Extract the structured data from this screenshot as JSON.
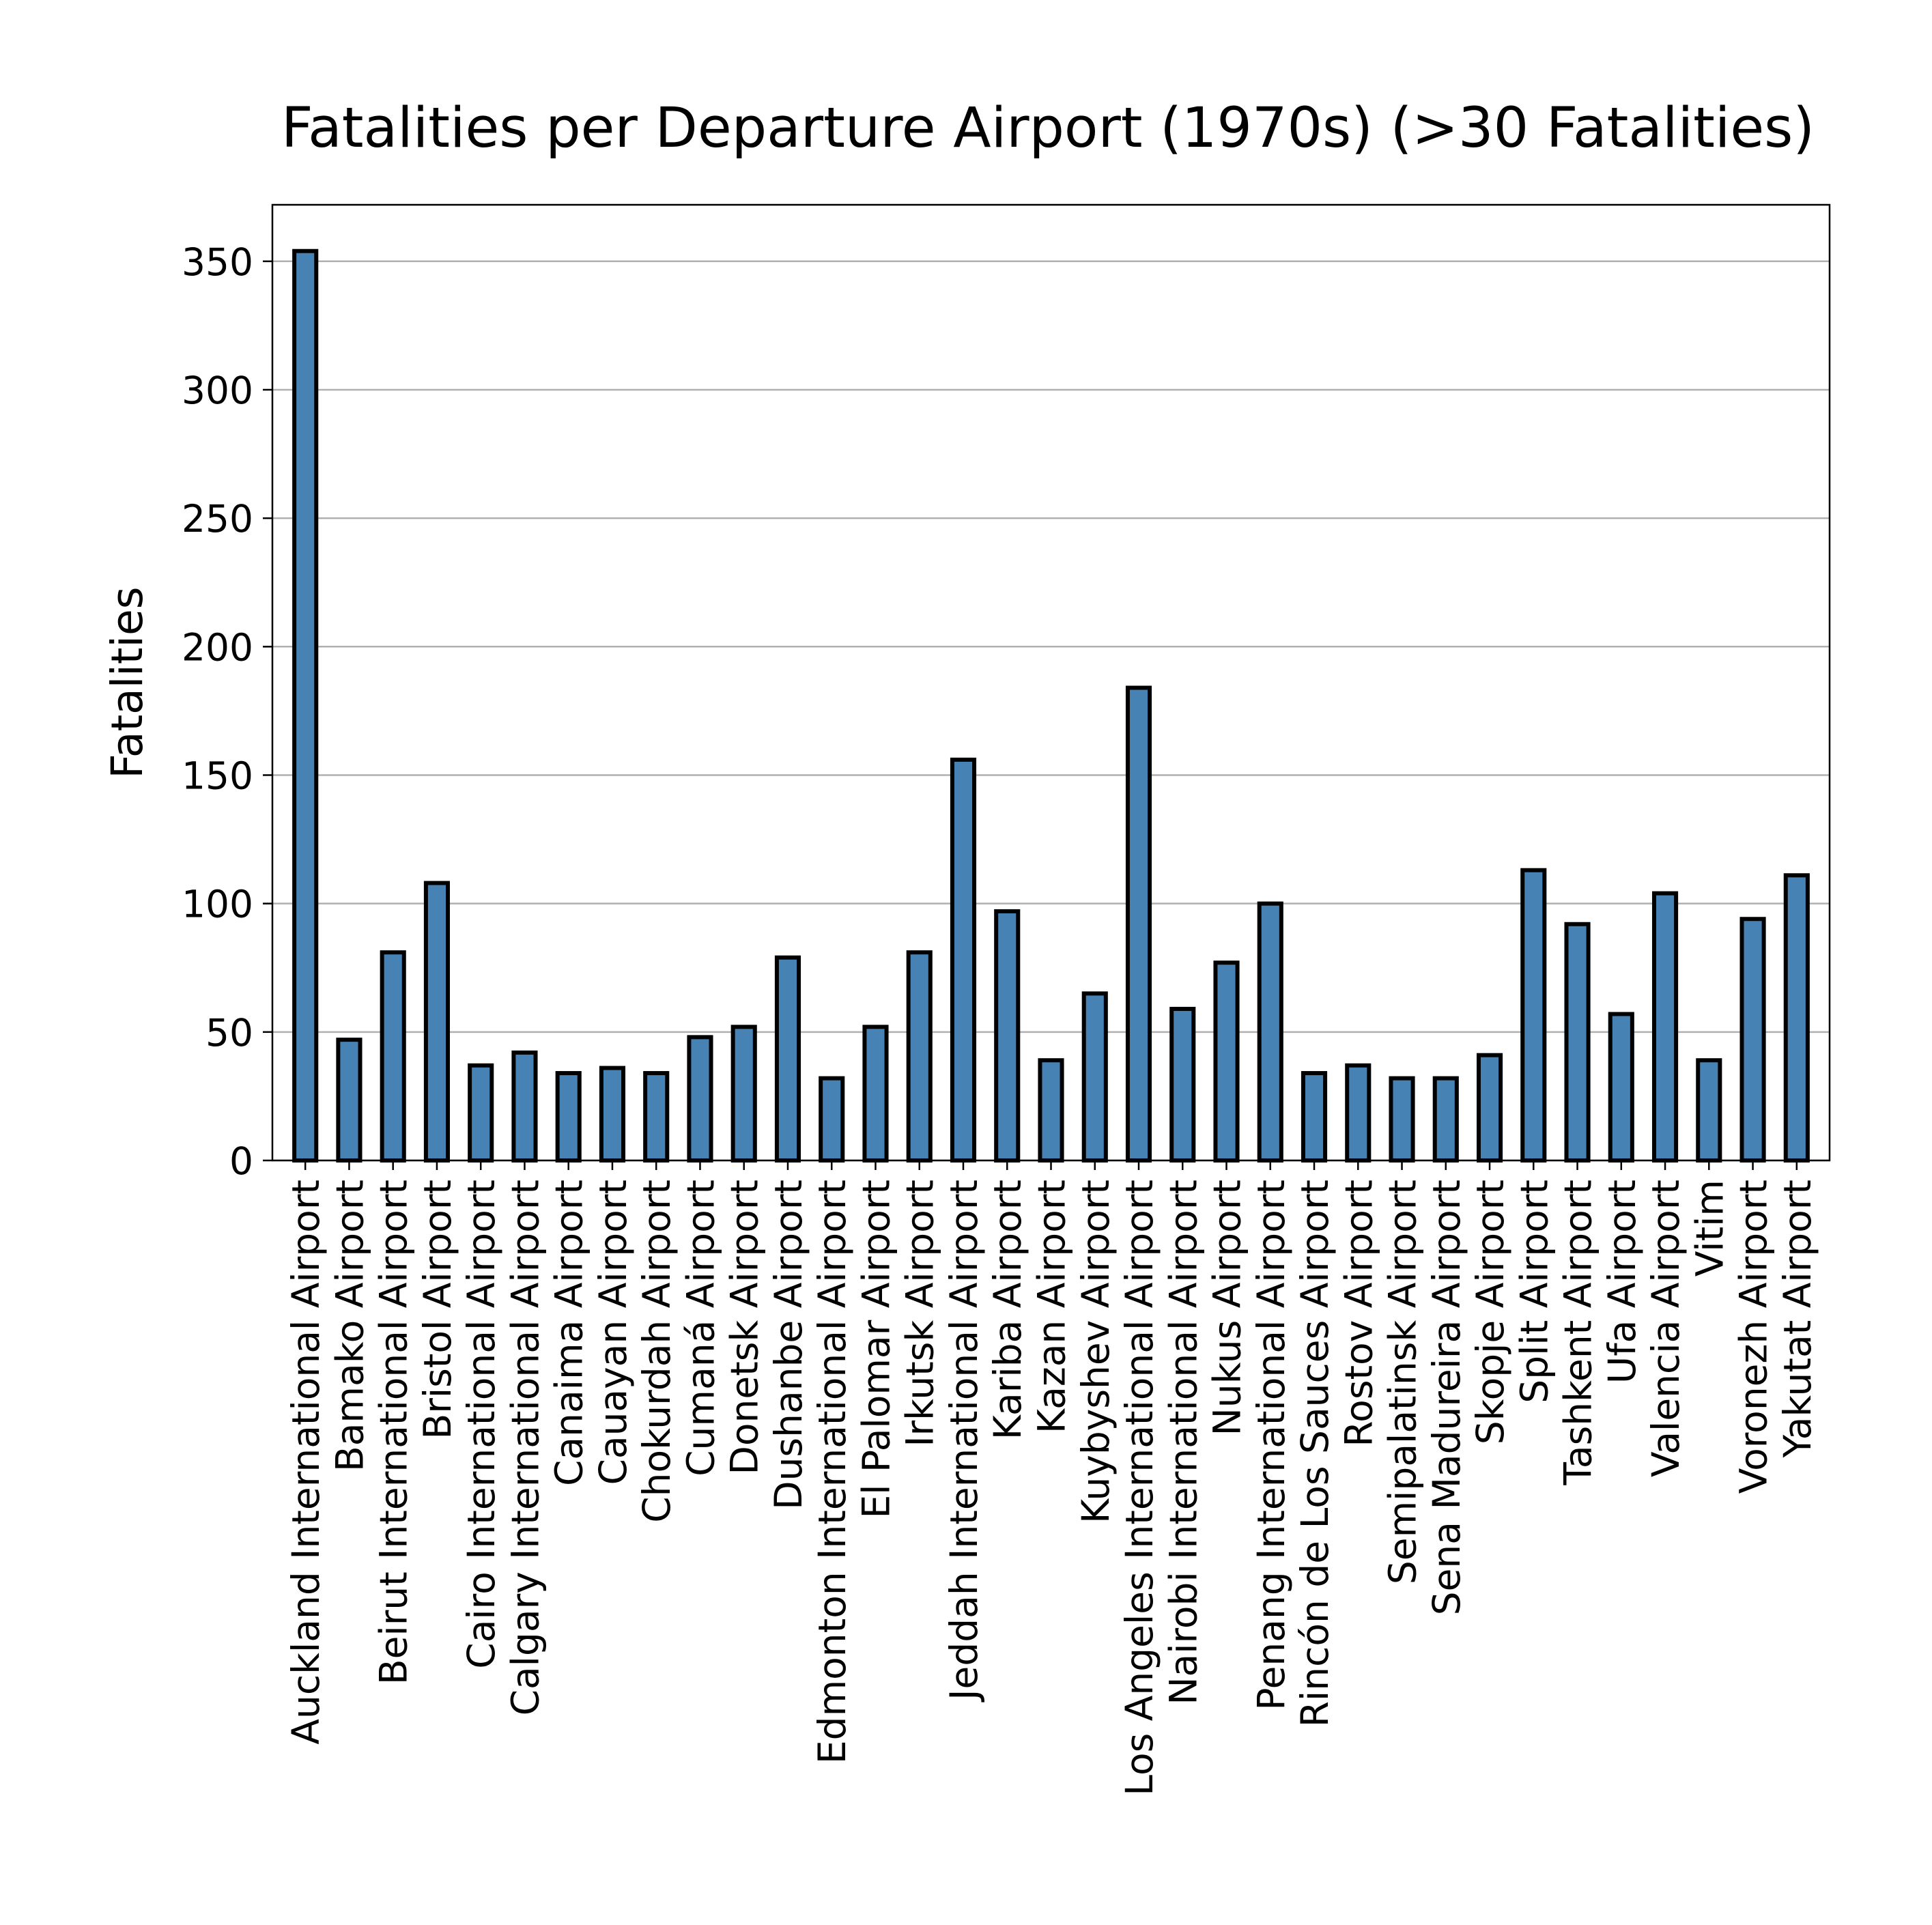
{
  "chart_data": {
    "type": "bar",
    "title": "Fatalities per Departure Airport (1970s) (>30 Fatalities)",
    "xlabel": "",
    "ylabel": "Fatalities",
    "ylim": [
      0,
      372
    ],
    "yticks": [
      0,
      50,
      100,
      150,
      200,
      250,
      300,
      350
    ],
    "grid": "y",
    "bar_color": "#4682b4",
    "edge_color": "#000000",
    "categories": [
      "Auckland International Airport",
      "Bamako Airport",
      "Beirut International Airport",
      "Bristol Airport",
      "Cairo International Airport",
      "Calgary International Airport",
      "Canaima Airport",
      "Cauayan Airport",
      "Chokurdah Airport",
      "Cumaná Airport",
      "Donetsk Airport",
      "Dushanbe Airport",
      "Edmonton International Airport",
      "El Palomar Airport",
      "Irkutsk Airport",
      "Jeddah International Airport",
      "Kariba Airport",
      "Kazan Airport",
      "Kuybyshev Airport",
      "Los Angeles International Airport",
      "Nairobi International Airport",
      "Nukus Airport",
      "Penang International Airport",
      "Rincón de Los Sauces Airport",
      "Rostov Airport",
      "Semipalatinsk Airport",
      "Sena Madureira Airport",
      "Skopje Airport",
      "Split Airport",
      "Tashkent Airport",
      "Ufa Airport",
      "Valencia Airport",
      "Vitim",
      "Voronezh Airport",
      "Yakutat Airport"
    ],
    "values": [
      354,
      47,
      81,
      108,
      37,
      42,
      34,
      36,
      34,
      48,
      52,
      79,
      32,
      52,
      81,
      156,
      97,
      39,
      65,
      184,
      59,
      77,
      100,
      34,
      37,
      32,
      32,
      41,
      113,
      92,
      57,
      104,
      39,
      94,
      111
    ]
  }
}
